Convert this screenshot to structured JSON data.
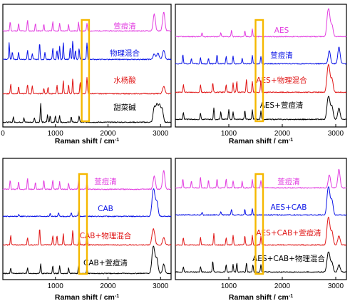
{
  "colors": {
    "magenta": "#e23de0",
    "blue": "#0a14e6",
    "red": "#e01616",
    "black": "#000000",
    "highlight": "#f5b800"
  },
  "chart_data": [
    {
      "type": "line",
      "xlabel": "Raman shift / cm",
      "xlabel_sup": "-1",
      "xlim": [
        0,
        3200
      ],
      "xticks": [
        0,
        1000,
        2000,
        3000
      ],
      "highlight_x": [
        1500,
        1640
      ],
      "series": [
        {
          "name": "萱痘清",
          "color": "#e23de0",
          "peaks": [
            [
              140,
              0.5
            ],
            [
              300,
              0.4
            ],
            [
              470,
              0.6
            ],
            [
              620,
              0.4
            ],
            [
              780,
              0.35
            ],
            [
              950,
              0.5
            ],
            [
              1080,
              0.4
            ],
            [
              1250,
              0.35
            ],
            [
              1440,
              0.45
            ],
            [
              1600,
              0.4
            ],
            [
              2880,
              0.9
            ],
            [
              3060,
              1.0
            ]
          ]
        },
        {
          "name": "物理混合",
          "color": "#0a14e6",
          "peaks": [
            [
              120,
              0.9
            ],
            [
              180,
              0.4
            ],
            [
              300,
              0.4
            ],
            [
              470,
              0.5
            ],
            [
              560,
              0.3
            ],
            [
              700,
              0.9
            ],
            [
              800,
              0.4
            ],
            [
              950,
              0.6
            ],
            [
              1030,
              0.5
            ],
            [
              1080,
              0.7
            ],
            [
              1150,
              0.9
            ],
            [
              1280,
              0.6
            ],
            [
              1330,
              1.0
            ],
            [
              1380,
              0.5
            ],
            [
              1450,
              0.6
            ],
            [
              1600,
              0.9
            ],
            [
              2880,
              0.3
            ],
            [
              2950,
              0.35
            ],
            [
              3060,
              0.5
            ]
          ]
        },
        {
          "name": "水杨酸",
          "color": "#e01616",
          "peaks": [
            [
              150,
              0.5
            ],
            [
              300,
              0.4
            ],
            [
              470,
              0.5
            ],
            [
              560,
              0.4
            ],
            [
              780,
              0.3
            ],
            [
              860,
              0.35
            ],
            [
              1030,
              0.45
            ],
            [
              1150,
              0.7
            ],
            [
              1250,
              0.5
            ],
            [
              1330,
              0.8
            ],
            [
              1470,
              0.6
            ],
            [
              1600,
              0.9
            ],
            [
              3060,
              0.4
            ]
          ]
        },
        {
          "name": "甜菜碱",
          "color": "#000000",
          "peaks": [
            [
              200,
              0.3
            ],
            [
              400,
              0.25
            ],
            [
              600,
              0.25
            ],
            [
              720,
              1.0
            ],
            [
              850,
              0.4
            ],
            [
              900,
              0.35
            ],
            [
              1000,
              0.35
            ],
            [
              1080,
              0.35
            ],
            [
              1300,
              0.3
            ],
            [
              1450,
              0.35
            ],
            [
              2880,
              0.8
            ],
            [
              2930,
              0.9
            ],
            [
              2980,
              0.9
            ],
            [
              3030,
              0.7
            ]
          ]
        }
      ]
    },
    {
      "type": "line",
      "xlabel": "Raman shift / cm",
      "xlabel_sup": "-1",
      "xlim": [
        0,
        3200
      ],
      "xticks": [
        1000,
        2000,
        3000
      ],
      "highlight_x": [
        1500,
        1640
      ],
      "series": [
        {
          "name": "AES",
          "color": "#e23de0",
          "peaks": [
            [
              500,
              0.2
            ],
            [
              850,
              0.2
            ],
            [
              1050,
              0.35
            ],
            [
              1300,
              0.3
            ],
            [
              1440,
              0.4
            ],
            [
              2850,
              1.0
            ],
            [
              2880,
              0.95
            ],
            [
              2930,
              0.6
            ]
          ]
        },
        {
          "name": "萱痘清",
          "color": "#0a14e6",
          "peaks": [
            [
              140,
              0.5
            ],
            [
              300,
              0.3
            ],
            [
              470,
              0.35
            ],
            [
              620,
              0.3
            ],
            [
              780,
              0.5
            ],
            [
              950,
              0.4
            ],
            [
              1080,
              0.4
            ],
            [
              1250,
              0.3
            ],
            [
              1440,
              0.45
            ],
            [
              1600,
              0.4
            ],
            [
              2880,
              0.7
            ],
            [
              3060,
              0.9
            ]
          ]
        },
        {
          "name": "AES+物理混合",
          "color": "#e01616",
          "peaks": [
            [
              150,
              0.4
            ],
            [
              470,
              0.4
            ],
            [
              700,
              0.5
            ],
            [
              950,
              0.4
            ],
            [
              1080,
              0.5
            ],
            [
              1150,
              0.6
            ],
            [
              1330,
              0.7
            ],
            [
              1440,
              0.6
            ],
            [
              1600,
              0.6
            ],
            [
              2850,
              1.0
            ],
            [
              2880,
              0.9
            ],
            [
              2930,
              0.7
            ]
          ]
        },
        {
          "name": "AES+萱痘清",
          "color": "#000000",
          "peaks": [
            [
              150,
              0.4
            ],
            [
              470,
              0.35
            ],
            [
              720,
              0.6
            ],
            [
              850,
              0.4
            ],
            [
              1000,
              0.55
            ],
            [
              1080,
              0.4
            ],
            [
              1300,
              0.5
            ],
            [
              1440,
              0.5
            ],
            [
              1600,
              0.45
            ],
            [
              2850,
              0.8
            ],
            [
              2880,
              0.8
            ],
            [
              2930,
              0.7
            ],
            [
              3060,
              0.6
            ]
          ]
        }
      ]
    },
    {
      "type": "line",
      "xlabel": "Raman shift / cm",
      "xlabel_sup": "-1",
      "xlim": [
        0,
        3200
      ],
      "xticks": [
        1000,
        2000,
        3000
      ],
      "highlight_x": [
        1450,
        1600
      ],
      "series": [
        {
          "name": "萱痘清",
          "color": "#e23de0",
          "peaks": [
            [
              140,
              0.5
            ],
            [
              300,
              0.4
            ],
            [
              470,
              0.6
            ],
            [
              620,
              0.4
            ],
            [
              780,
              0.5
            ],
            [
              950,
              0.5
            ],
            [
              1080,
              0.4
            ],
            [
              1250,
              0.35
            ],
            [
              1440,
              0.45
            ],
            [
              1600,
              0.4
            ],
            [
              2880,
              0.7
            ],
            [
              3060,
              1.0
            ]
          ]
        },
        {
          "name": "CAB",
          "color": "#0a14e6",
          "peaks": [
            [
              300,
              0.1
            ],
            [
              900,
              0.15
            ],
            [
              1060,
              0.2
            ],
            [
              1300,
              0.2
            ],
            [
              1440,
              0.3
            ],
            [
              2850,
              0.9
            ],
            [
              2880,
              1.0
            ],
            [
              2930,
              0.8
            ]
          ]
        },
        {
          "name": "CAB+物理混合",
          "color": "#e01616",
          "peaks": [
            [
              150,
              0.5
            ],
            [
              470,
              0.4
            ],
            [
              700,
              0.9
            ],
            [
              950,
              0.5
            ],
            [
              1030,
              0.5
            ],
            [
              1150,
              0.6
            ],
            [
              1330,
              0.8
            ],
            [
              1450,
              0.5
            ],
            [
              1600,
              0.7
            ],
            [
              2850,
              0.6
            ],
            [
              2880,
              0.5
            ],
            [
              3060,
              0.4
            ]
          ]
        },
        {
          "name": "CAB+萱痘清",
          "color": "#000000",
          "peaks": [
            [
              150,
              0.3
            ],
            [
              470,
              0.3
            ],
            [
              720,
              0.5
            ],
            [
              950,
              0.4
            ],
            [
              1080,
              0.4
            ],
            [
              1250,
              0.3
            ],
            [
              1440,
              0.4
            ],
            [
              1600,
              0.3
            ],
            [
              2850,
              1.0
            ],
            [
              2880,
              0.9
            ],
            [
              2930,
              0.8
            ],
            [
              3060,
              0.5
            ]
          ]
        }
      ]
    },
    {
      "type": "line",
      "xlabel": "Raman shift / cm",
      "xlabel_sup": "-1",
      "xlim": [
        0,
        3200
      ],
      "xticks": [
        1000,
        2000,
        3000
      ],
      "highlight_x": [
        1500,
        1640
      ],
      "series": [
        {
          "name": "萱痘清",
          "color": "#e23de0",
          "peaks": [
            [
              140,
              0.5
            ],
            [
              300,
              0.4
            ],
            [
              470,
              0.6
            ],
            [
              620,
              0.4
            ],
            [
              780,
              0.5
            ],
            [
              950,
              0.5
            ],
            [
              1080,
              0.4
            ],
            [
              1250,
              0.35
            ],
            [
              1440,
              0.45
            ],
            [
              1600,
              0.4
            ],
            [
              2880,
              0.7
            ],
            [
              3060,
              1.0
            ]
          ]
        },
        {
          "name": "AES+CAB",
          "color": "#0a14e6",
          "peaks": [
            [
              500,
              0.15
            ],
            [
              850,
              0.2
            ],
            [
              1050,
              0.3
            ],
            [
              1300,
              0.3
            ],
            [
              1440,
              0.35
            ],
            [
              2850,
              1.0
            ],
            [
              2880,
              0.95
            ],
            [
              2930,
              0.8
            ]
          ]
        },
        {
          "name": "AES+CAB+萱痘清",
          "color": "#e01616",
          "peaks": [
            [
              150,
              0.4
            ],
            [
              470,
              0.4
            ],
            [
              720,
              0.6
            ],
            [
              950,
              0.4
            ],
            [
              1080,
              0.5
            ],
            [
              1300,
              0.5
            ],
            [
              1440,
              0.5
            ],
            [
              1600,
              0.45
            ],
            [
              2850,
              1.0
            ],
            [
              2880,
              0.9
            ],
            [
              2930,
              0.7
            ],
            [
              3060,
              0.5
            ]
          ]
        },
        {
          "name": "AES+CAB+物理混合",
          "color": "#000000",
          "peaks": [
            [
              150,
              0.3
            ],
            [
              470,
              0.3
            ],
            [
              700,
              0.6
            ],
            [
              950,
              0.4
            ],
            [
              1080,
              0.4
            ],
            [
              1150,
              0.5
            ],
            [
              1330,
              0.5
            ],
            [
              1450,
              0.4
            ],
            [
              1600,
              0.4
            ],
            [
              2850,
              0.7
            ],
            [
              2880,
              0.7
            ],
            [
              2930,
              0.5
            ],
            [
              3060,
              0.4
            ]
          ]
        }
      ]
    }
  ]
}
